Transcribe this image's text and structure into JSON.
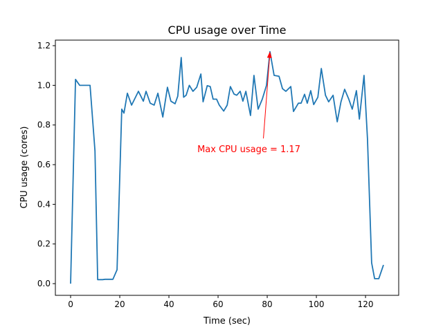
{
  "chart_data": {
    "type": "line",
    "title": "CPU usage over Time",
    "xlabel": "Time (sec)",
    "ylabel": "CPU usage (cores)",
    "xlim": [
      -6.2,
      133.5
    ],
    "ylim": [
      -0.059,
      1.228
    ],
    "xticks": [
      0,
      20,
      40,
      60,
      80,
      100,
      120
    ],
    "xtick_labels": [
      "0",
      "20",
      "40",
      "60",
      "80",
      "100",
      "120"
    ],
    "yticks": [
      0.0,
      0.2,
      0.4,
      0.6,
      0.8,
      1.0,
      1.2
    ],
    "ytick_labels": [
      "0.0",
      "0.2",
      "0.4",
      "0.6",
      "0.8",
      "1.0",
      "1.2"
    ],
    "grid": false,
    "series": [
      {
        "name": "CPU usage",
        "color": "#1f77b4",
        "x": [
          0,
          2,
          3.7,
          7.9,
          9.9,
          11,
          13,
          14,
          17.2,
          18.9,
          20.8,
          21.7,
          23.1,
          24.8,
          27.6,
          29.6,
          30.7,
          32.4,
          34,
          35.5,
          37.5,
          39.4,
          40.8,
          42.5,
          43.6,
          45,
          46,
          47,
          48.3,
          49.8,
          51.3,
          53,
          53.9,
          55.6,
          56.8,
          58,
          59.4,
          60.5,
          62.3,
          63.7,
          65,
          66.5,
          67.6,
          69,
          70.1,
          71.3,
          73.2,
          74.6,
          76.3,
          78,
          79.7,
          81.1,
          82.8,
          84.8,
          86.2,
          87.6,
          89.6,
          90.7,
          92.7,
          93.8,
          95.2,
          96.3,
          97.7,
          98.9,
          100.6,
          102,
          103.7,
          105,
          106.8,
          108.5,
          110,
          111.5,
          113.2,
          114.6,
          116.3,
          117.5,
          119.4,
          120.8,
          122.5,
          123.7,
          125.4,
          127.3
        ],
        "y": [
          0.0,
          1.03,
          1.0,
          1.0,
          0.67,
          0.02,
          0.02,
          0.022,
          0.022,
          0.07,
          0.88,
          0.86,
          0.96,
          0.9,
          0.97,
          0.92,
          0.97,
          0.91,
          0.9,
          0.96,
          0.84,
          0.99,
          0.92,
          0.907,
          0.945,
          1.14,
          0.94,
          0.95,
          1.0,
          0.97,
          0.99,
          1.057,
          0.917,
          0.998,
          0.994,
          0.93,
          0.93,
          0.9,
          0.87,
          0.9,
          0.994,
          0.956,
          0.95,
          0.97,
          0.92,
          0.97,
          0.848,
          1.05,
          0.88,
          0.93,
          1.0,
          1.17,
          1.05,
          1.046,
          0.983,
          0.97,
          0.994,
          0.868,
          0.91,
          0.91,
          0.955,
          0.91,
          0.973,
          0.903,
          0.94,
          1.085,
          0.95,
          0.917,
          0.95,
          0.816,
          0.917,
          0.98,
          0.93,
          0.88,
          0.973,
          0.83,
          1.05,
          0.73,
          0.105,
          0.025,
          0.025,
          0.094
        ]
      }
    ],
    "annotation": {
      "text": "Max CPU usage = 1.17",
      "color": "#ff0000",
      "xy": [
        81.1,
        1.17
      ],
      "xytext": [
        74.5,
        0.68
      ]
    }
  }
}
